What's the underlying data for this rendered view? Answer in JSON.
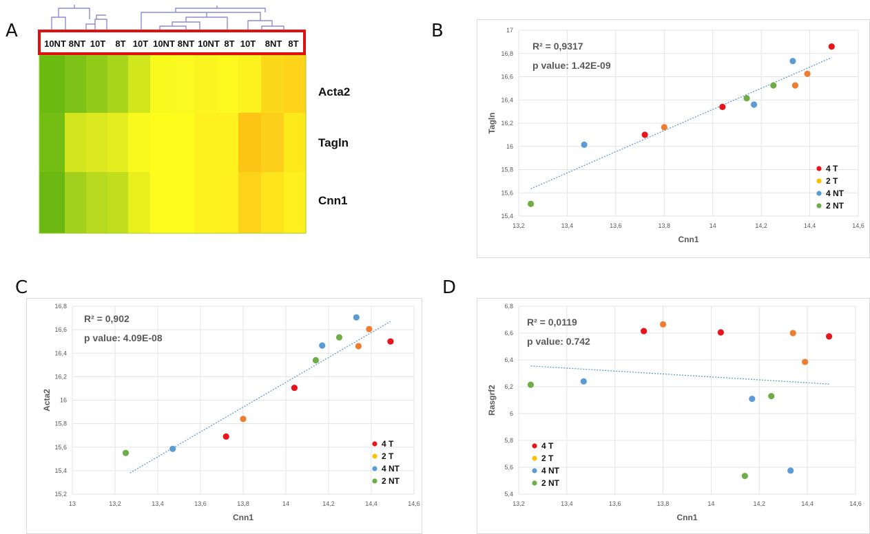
{
  "panels": [
    {
      "id": "A"
    },
    {
      "id": "B"
    },
    {
      "id": "C"
    },
    {
      "id": "D"
    }
  ],
  "legend_colors": {
    "4 T": "#e8141b",
    "2 T": "#ed7d31",
    "4 NT": "#5b9bd5",
    "2 NT": "#70ad47"
  },
  "chart_data": [
    {
      "type": "heatmap",
      "panel": "A",
      "columns": [
        "10NT",
        "8NT",
        "10T",
        "8T",
        "10T",
        "10NT",
        "8NT",
        "10NT",
        "8T",
        "10T",
        "8NT",
        "8T"
      ],
      "rows": [
        "Acta2",
        "Tagln",
        "Cnn1"
      ],
      "cell_colors": [
        [
          "#6aba12",
          "#7fc217",
          "#92cb1a",
          "#a9d51c",
          "#d2e61e",
          "#f7fa1c",
          "#fbfa20",
          "#fbf420",
          "#fdf81e",
          "#fdf21e",
          "#fdd81a",
          "#fed31a"
        ],
        [
          "#74be13",
          "#d3e51f",
          "#dce920",
          "#e4ed20",
          "#f7fa1c",
          "#fdfc1c",
          "#fdfc1c",
          "#fdf21e",
          "#fdf11e",
          "#fcc516",
          "#fcd01a",
          "#fde81c"
        ],
        [
          "#6cb812",
          "#a2d01c",
          "#b7da1e",
          "#c1df1e",
          "#e9f01e",
          "#fdfc1c",
          "#fdfc1c",
          "#fdf21e",
          "#fdf01e",
          "#fcd31a",
          "#fde41c",
          "#fdf01e"
        ]
      ]
    },
    {
      "type": "scatter",
      "panel": "B",
      "xlabel": "Cnn1",
      "ylabel": "Tagln",
      "xlim": [
        13.2,
        14.6
      ],
      "ylim": [
        15.4,
        17
      ],
      "xticks": [
        "13,2",
        "13,4",
        "13,6",
        "13,8",
        "14",
        "14,2",
        "14,4",
        "14,6"
      ],
      "yticks": [
        "15,4",
        "15,6",
        "15,8",
        "16",
        "16,2",
        "16,4",
        "16,6",
        "16,8",
        "17"
      ],
      "annotations": [
        "R² = 0,9317",
        "p value: 1.42E-09"
      ],
      "legend": [
        "4 T",
        "2 T",
        "4 NT",
        "2 NT"
      ],
      "legend_position": "bottom-right",
      "trendline": [
        [
          13.25,
          15.635
        ],
        [
          14.49,
          16.765
        ]
      ],
      "points": [
        {
          "x": 14.49,
          "y": 16.86,
          "group": "4 T"
        },
        {
          "x": 14.04,
          "y": 16.34,
          "group": "4 T"
        },
        {
          "x": 13.72,
          "y": 16.1,
          "group": "4 T"
        },
        {
          "x": 13.8,
          "y": 16.165,
          "group": "2 T"
        },
        {
          "x": 14.34,
          "y": 16.525,
          "group": "2 T"
        },
        {
          "x": 14.39,
          "y": 16.625,
          "group": "2 T"
        },
        {
          "x": 14.33,
          "y": 16.735,
          "group": "4 NT"
        },
        {
          "x": 14.17,
          "y": 16.36,
          "group": "4 NT"
        },
        {
          "x": 13.47,
          "y": 16.015,
          "group": "4 NT"
        },
        {
          "x": 14.25,
          "y": 16.525,
          "group": "2 NT"
        },
        {
          "x": 14.14,
          "y": 16.415,
          "group": "2 NT"
        },
        {
          "x": 13.25,
          "y": 15.505,
          "group": "2 NT"
        }
      ]
    },
    {
      "type": "scatter",
      "panel": "C",
      "xlabel": "Cnn1",
      "ylabel": "Acta2",
      "xlim": [
        13,
        14.6
      ],
      "ylim": [
        15.2,
        16.8
      ],
      "xticks": [
        "13",
        "13,2",
        "13,4",
        "13,6",
        "13,8",
        "14",
        "14,2",
        "14,4",
        "14,6"
      ],
      "yticks": [
        "15,2",
        "15,4",
        "15,6",
        "15,8",
        "16",
        "16,2",
        "16,4",
        "16,6",
        "16,8"
      ],
      "annotations": [
        "R² = 0,902",
        "p value: 4.09E-08"
      ],
      "legend": [
        "4 T",
        "2 T",
        "4 NT",
        "2 NT"
      ],
      "legend_position": "bottom-right",
      "trendline": [
        [
          13.27,
          15.38
        ],
        [
          14.49,
          16.67
        ]
      ],
      "points": [
        {
          "x": 14.49,
          "y": 16.5,
          "group": "4 T"
        },
        {
          "x": 14.04,
          "y": 16.105,
          "group": "4 T"
        },
        {
          "x": 13.72,
          "y": 15.69,
          "group": "4 T"
        },
        {
          "x": 14.39,
          "y": 16.605,
          "group": "2 T"
        },
        {
          "x": 14.34,
          "y": 16.46,
          "group": "2 T"
        },
        {
          "x": 13.8,
          "y": 15.84,
          "group": "2 T"
        },
        {
          "x": 14.33,
          "y": 16.705,
          "group": "4 NT"
        },
        {
          "x": 14.17,
          "y": 16.465,
          "group": "4 NT"
        },
        {
          "x": 13.47,
          "y": 15.585,
          "group": "4 NT"
        },
        {
          "x": 14.25,
          "y": 16.535,
          "group": "2 NT"
        },
        {
          "x": 14.14,
          "y": 16.34,
          "group": "2 NT"
        },
        {
          "x": 13.25,
          "y": 15.55,
          "group": "2 NT"
        }
      ]
    },
    {
      "type": "scatter",
      "panel": "D",
      "xlabel": "Cnn1",
      "ylabel": "Rasgrf2",
      "xlim": [
        13.2,
        14.6
      ],
      "ylim": [
        5.4,
        6.8
      ],
      "xticks": [
        "13,2",
        "13,4",
        "13,6",
        "13,8",
        "14",
        "14,2",
        "14,4",
        "14,6"
      ],
      "yticks": [
        "5,4",
        "5,6",
        "5,8",
        "6",
        "6,2",
        "6,4",
        "6,6",
        "6,8"
      ],
      "annotations": [
        "R² = 0,0119",
        "p value: 0.742"
      ],
      "legend": [
        "4 T",
        "2 T",
        "4 NT",
        "2 NT"
      ],
      "legend_position": "bottom-left",
      "trendline": [
        [
          13.25,
          6.355
        ],
        [
          14.49,
          6.22
        ]
      ],
      "points": [
        {
          "x": 13.72,
          "y": 6.615,
          "group": "4 T"
        },
        {
          "x": 14.04,
          "y": 6.605,
          "group": "4 T"
        },
        {
          "x": 14.49,
          "y": 6.575,
          "group": "4 T"
        },
        {
          "x": 13.8,
          "y": 6.665,
          "group": "2 T"
        },
        {
          "x": 14.34,
          "y": 6.6,
          "group": "2 T"
        },
        {
          "x": 14.39,
          "y": 6.385,
          "group": "2 T"
        },
        {
          "x": 13.47,
          "y": 6.24,
          "group": "4 NT"
        },
        {
          "x": 14.17,
          "y": 6.11,
          "group": "4 NT"
        },
        {
          "x": 14.33,
          "y": 5.575,
          "group": "4 NT"
        },
        {
          "x": 13.25,
          "y": 6.215,
          "group": "2 NT"
        },
        {
          "x": 14.25,
          "y": 6.13,
          "group": "2 NT"
        },
        {
          "x": 14.14,
          "y": 5.535,
          "group": "2 NT"
        }
      ]
    }
  ]
}
